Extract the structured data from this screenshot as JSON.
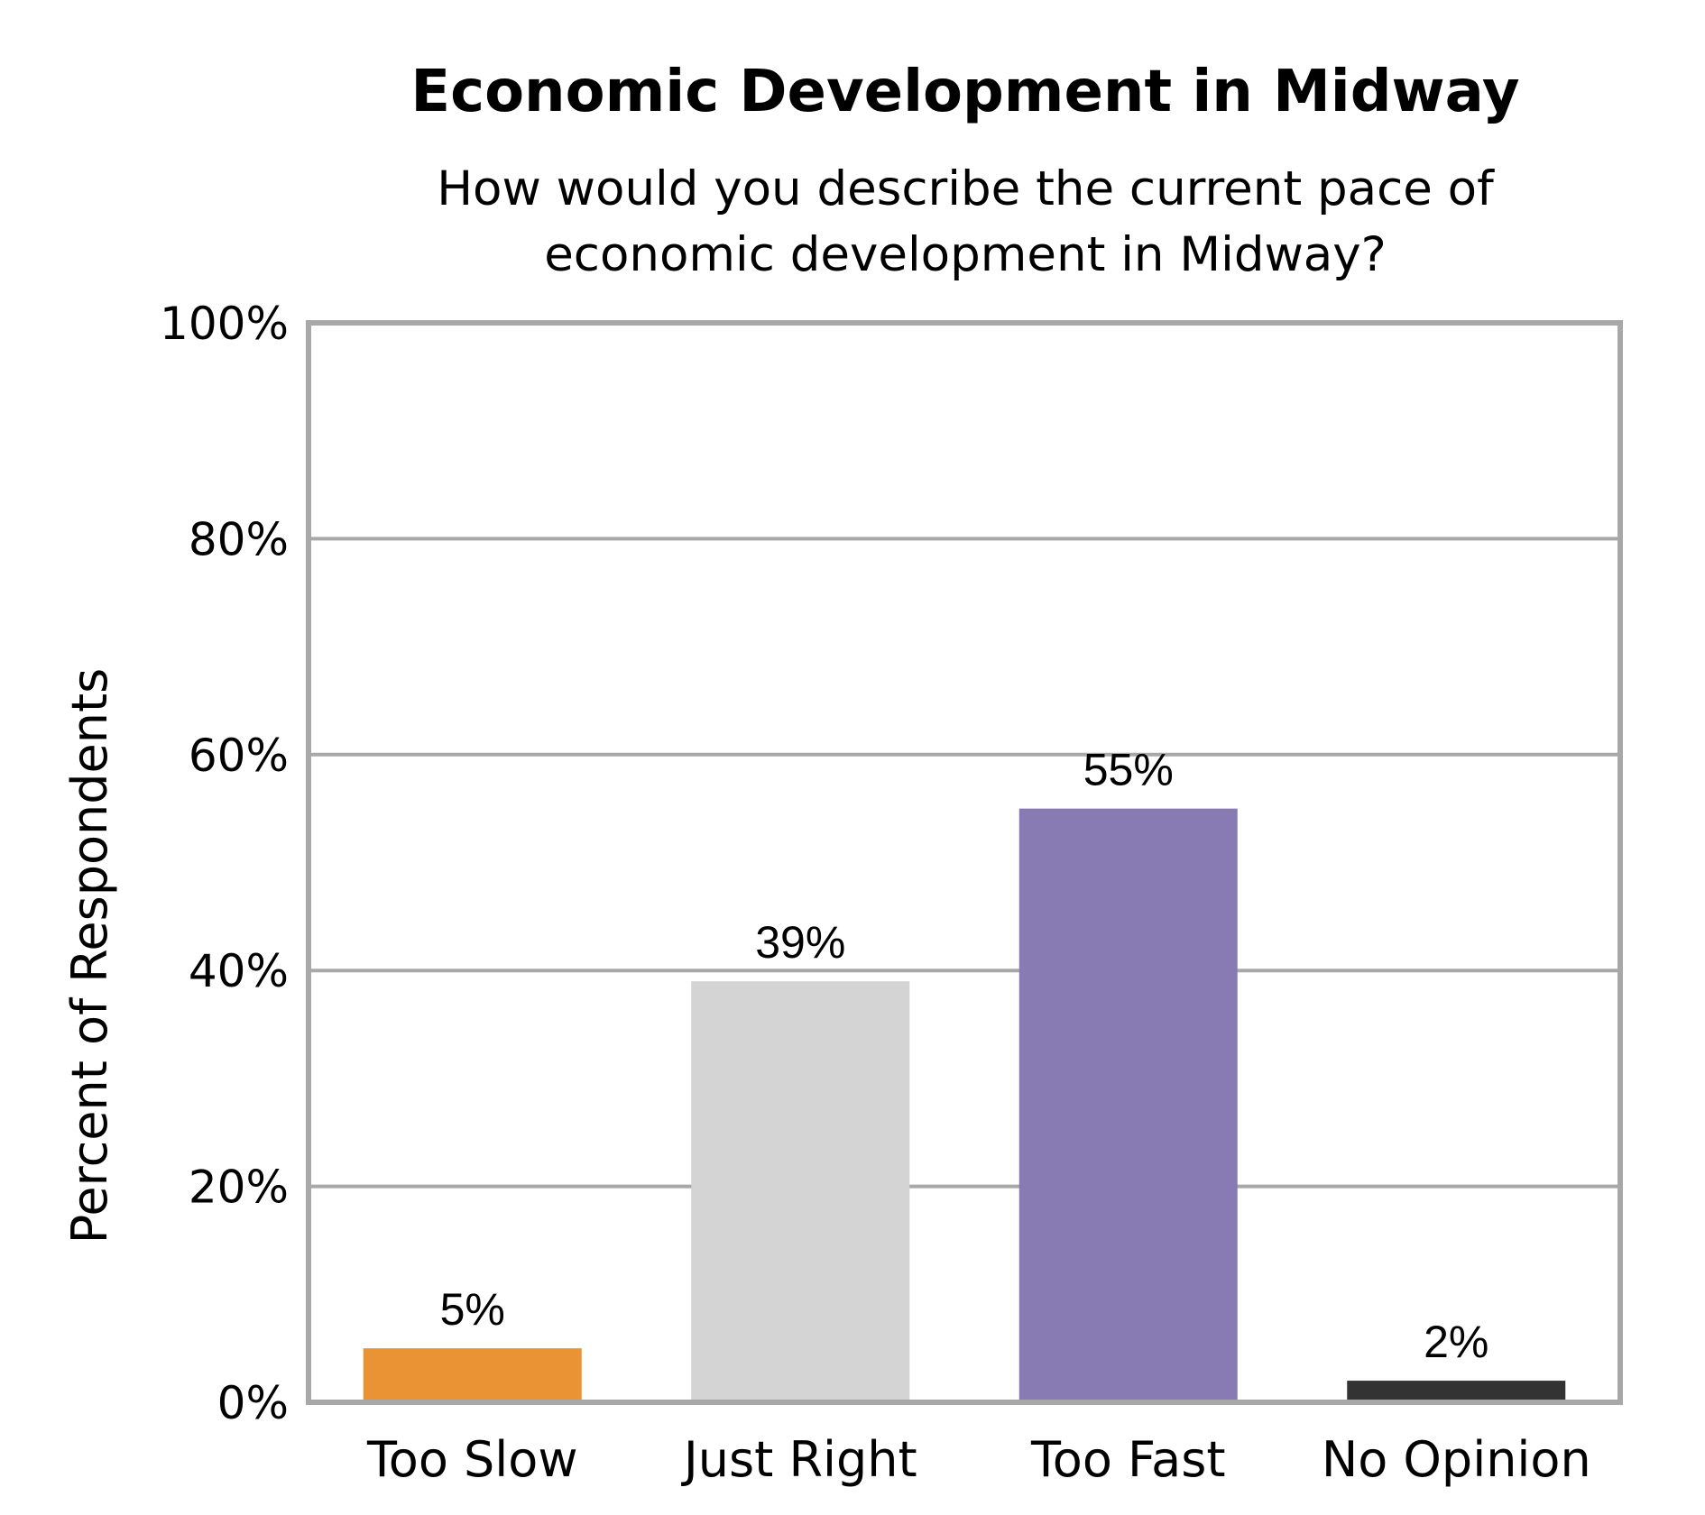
{
  "chart_data": {
    "type": "bar",
    "title": "Economic Development in Midway",
    "subtitle": [
      "How would you describe the current pace of",
      "economic development in Midway?"
    ],
    "ylabel": "Percent of Respondents",
    "xlabel": "",
    "categories": [
      "Too Slow",
      "Just Right",
      "Too Fast",
      "No Opinion"
    ],
    "values": [
      5,
      39,
      55,
      2
    ],
    "data_labels": [
      "5%",
      "39%",
      "55%",
      "2%"
    ],
    "colors": [
      "#EA9334",
      "#D4D4D4",
      "#887BB4",
      "#333333"
    ],
    "ylim": [
      0,
      100
    ],
    "yticks": [
      0,
      20,
      40,
      60,
      80,
      100
    ],
    "ytick_labels": [
      "0%",
      "20%",
      "40%",
      "60%",
      "80%",
      "100%"
    ],
    "grid": true,
    "legend": "none"
  }
}
